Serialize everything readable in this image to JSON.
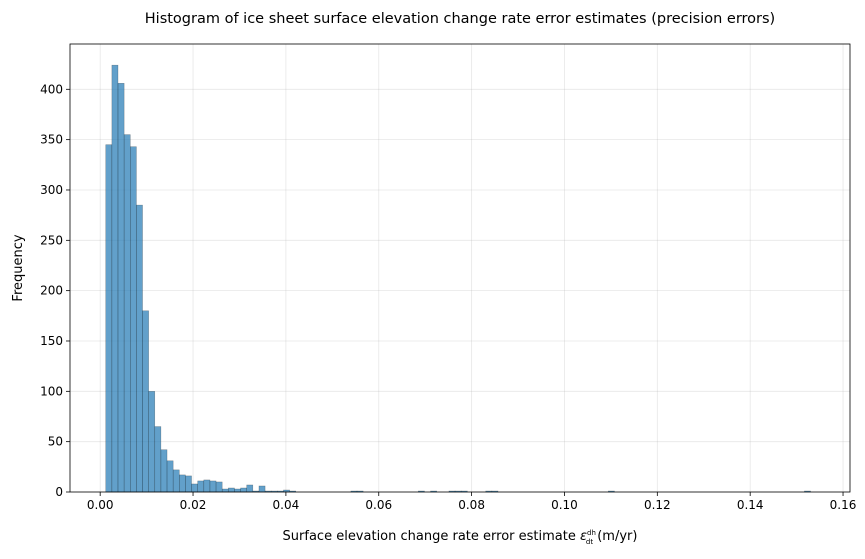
{
  "chart_data": {
    "type": "bar",
    "title": "Histogram of ice sheet surface elevation change rate error estimates (precision errors)",
    "xlabel": "Surface elevation change rate error estimate ",
    "xlabel_symbol": "ε",
    "xlabel_sub_num": "dh",
    "xlabel_sub_den": "dt",
    "xlabel_unit": " (m/yr)",
    "ylabel": "Frequency",
    "xlim": [
      -0.0065,
      0.1615
    ],
    "ylim": [
      0,
      445
    ],
    "x_ticks": [
      "0.00",
      "0.02",
      "0.04",
      "0.06",
      "0.08",
      "0.10",
      "0.12",
      "0.14",
      "0.16"
    ],
    "x_tick_values": [
      0.0,
      0.02,
      0.04,
      0.06,
      0.08,
      0.1,
      0.12,
      0.14,
      0.16
    ],
    "y_ticks": [
      0,
      50,
      100,
      150,
      200,
      250,
      300,
      350,
      400
    ],
    "grid": true,
    "color": "#1f77b4",
    "bin_start": 0.0012,
    "bin_width": 0.00132,
    "values": [
      345,
      424,
      406,
      355,
      343,
      285,
      180,
      100,
      65,
      42,
      31,
      22,
      17,
      16,
      8,
      11,
      12,
      11,
      10,
      3,
      4,
      3,
      4,
      7,
      1,
      6,
      1,
      1,
      1,
      2,
      1,
      0,
      0,
      0,
      0,
      0,
      0,
      0,
      0,
      0,
      1,
      1,
      0,
      0,
      0,
      0,
      0,
      0,
      0,
      0,
      0,
      1,
      0,
      1,
      0,
      0,
      1,
      1,
      1,
      0,
      0,
      0,
      1,
      1,
      0,
      0,
      0,
      0,
      0,
      0,
      0,
      0,
      0,
      0,
      0,
      0,
      0,
      0,
      0,
      0,
      0,
      0,
      1,
      0,
      0,
      0,
      0,
      0,
      0,
      0,
      0,
      0,
      0,
      0,
      0,
      0,
      0,
      0,
      0,
      0,
      0,
      0,
      0,
      0,
      0,
      0,
      0,
      0,
      0,
      0,
      0,
      0,
      0,
      0,
      1
    ]
  }
}
